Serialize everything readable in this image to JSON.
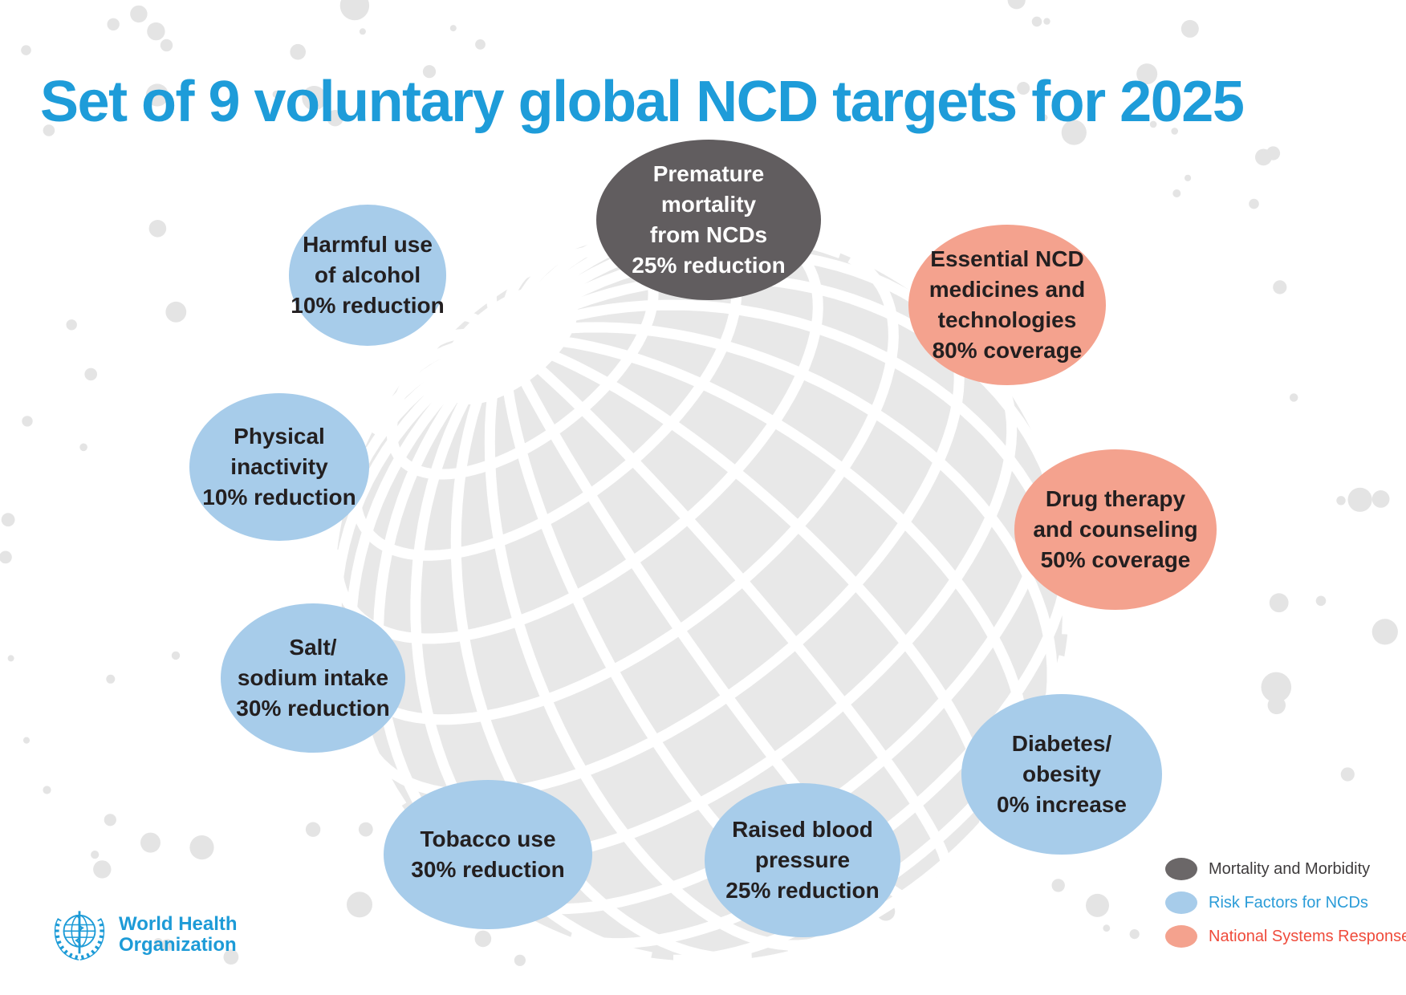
{
  "title": "Set of 9 voluntary global NCD targets for 2025",
  "colors": {
    "title_blue": "#1e9cd9",
    "mortality": "#615d5f",
    "risk": "#a7ccea",
    "response": "#f4a28e",
    "bubble_text_dark": "#231f20",
    "bubble_text_light": "#ffffff",
    "legend_mortality_swatch": "#6b6768",
    "legend_mortality_text": "#3e3b3c",
    "legend_risk_text": "#2b9cd8",
    "legend_response_text": "#ef4b3b",
    "globe_gray": "#e8e8e8",
    "dot_gray": "#e4e4e4",
    "who_blue": "#1d9bd7"
  },
  "bubbles": [
    {
      "name": "premature-mortality",
      "category": "mortality",
      "text": "Premature\nmortality\nfrom NCDs\n25% reduction"
    },
    {
      "name": "harmful-alcohol",
      "category": "risk",
      "text": "Harmful use\nof alcohol\n10% reduction"
    },
    {
      "name": "essential-medicines",
      "category": "response",
      "text": "Essential NCD\nmedicines and\ntechnologies\n80% coverage"
    },
    {
      "name": "physical-inactivity",
      "category": "risk",
      "text": "Physical\ninactivity\n10% reduction"
    },
    {
      "name": "drug-therapy",
      "category": "response",
      "text": "Drug therapy\nand counseling\n50% coverage"
    },
    {
      "name": "salt-sodium",
      "category": "risk",
      "text": "Salt/\nsodium intake\n30% reduction"
    },
    {
      "name": "diabetes-obesity",
      "category": "risk",
      "text": "Diabetes/\nobesity\n0% increase"
    },
    {
      "name": "tobacco-use",
      "category": "risk",
      "text": "Tobacco use\n30% reduction"
    },
    {
      "name": "raised-blood-pressure",
      "category": "risk",
      "text": "Raised blood\npressure\n25% reduction"
    }
  ],
  "legend": {
    "items": [
      {
        "label": "Mortality and Morbidity",
        "category": "mortality"
      },
      {
        "label": "Risk Factors for NCDs",
        "category": "risk"
      },
      {
        "label": "National Systems Response",
        "category": "response"
      }
    ]
  },
  "logo": {
    "line1": "World Health",
    "line2": "Organization"
  }
}
